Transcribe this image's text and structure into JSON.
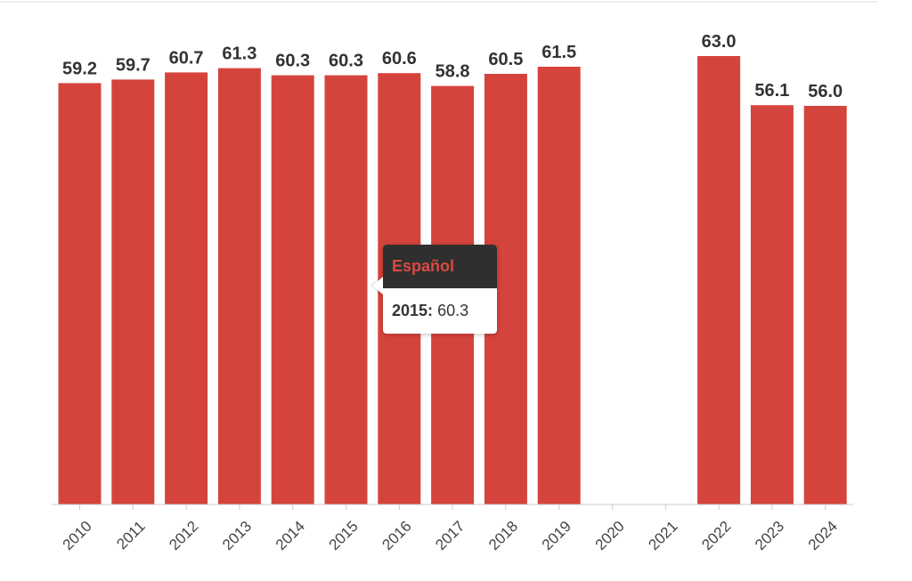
{
  "chart_data": {
    "type": "bar",
    "categories": [
      "2010",
      "2011",
      "2012",
      "2013",
      "2014",
      "2015",
      "2016",
      "2017",
      "2018",
      "2019",
      "2020",
      "2021",
      "2022",
      "2023",
      "2024"
    ],
    "values": [
      59.2,
      59.7,
      60.7,
      61.3,
      60.3,
      60.3,
      60.6,
      58.8,
      60.5,
      61.5,
      null,
      null,
      63.0,
      56.1,
      56.0
    ],
    "value_labels": [
      "59.2",
      "59.7",
      "60.7",
      "61.3",
      "60.3",
      "60.3",
      "60.6",
      "58.8",
      "60.5",
      "61.5",
      "",
      "",
      "63.0",
      "56.1",
      "56.0"
    ],
    "title": "",
    "xlabel": "",
    "ylabel": "",
    "ylim": [
      0,
      70
    ],
    "grid": false,
    "bar_color": "#d5443c",
    "series": [
      {
        "name": "Español",
        "values": [
          59.2,
          59.7,
          60.7,
          61.3,
          60.3,
          60.3,
          60.6,
          58.8,
          60.5,
          61.5,
          null,
          null,
          63.0,
          56.1,
          56.0
        ]
      }
    ]
  },
  "tooltip": {
    "series_name": "Español",
    "category": "2015:",
    "value": "60.3",
    "header_bg": "#2f2f2f",
    "name_color": "#d94a40"
  }
}
